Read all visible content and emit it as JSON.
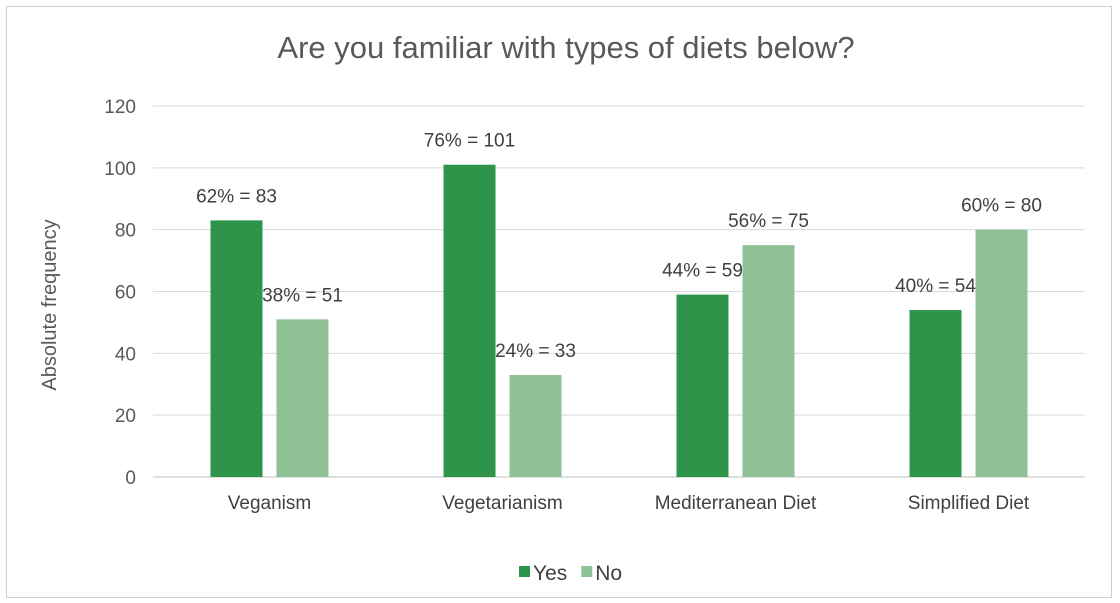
{
  "chart_data": {
    "type": "bar",
    "title": "Are you familiar with types of diets below?",
    "ylabel": "Absolute frequency",
    "xlabel": "",
    "categories": [
      "Veganism",
      "Vegetarianism",
      "Mediterranean Diet",
      "Simplified Diet"
    ],
    "series": [
      {
        "name": "Yes",
        "color": "#2e944a",
        "values": [
          83,
          101,
          59,
          54
        ],
        "labels": [
          "62% = 83",
          "76% = 101",
          "44% = 59",
          "40% = 54"
        ]
      },
      {
        "name": "No",
        "color": "#8fc196",
        "values": [
          51,
          33,
          75,
          80
        ],
        "labels": [
          "38% = 51",
          "24% = 33",
          "56% = 75",
          "60% = 80"
        ]
      }
    ],
    "ylim": [
      0,
      120
    ],
    "yticks": [
      0,
      20,
      40,
      60,
      80,
      100,
      120
    ],
    "grid": true,
    "legend": "bottom"
  }
}
